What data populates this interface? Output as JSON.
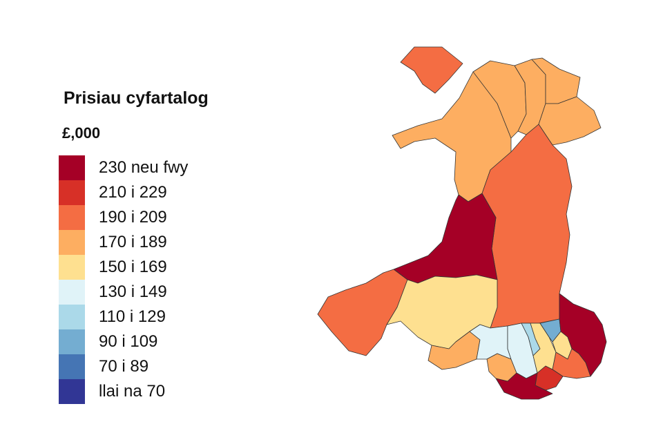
{
  "legend": {
    "title": "Prisiau cyfartalog",
    "unit": "£,000",
    "classes": [
      {
        "label": "230 neu fwy",
        "color": "#a50026"
      },
      {
        "label": "210 i 229",
        "color": "#d73027"
      },
      {
        "label": "190 i 209",
        "color": "#f46d43"
      },
      {
        "label": "170 i 189",
        "color": "#fdae61"
      },
      {
        "label": "150 i 169",
        "color": "#fee090"
      },
      {
        "label": "130 i 149",
        "color": "#e0f3f8"
      },
      {
        "label": "110 i 129",
        "color": "#abd9e9"
      },
      {
        "label": "90 i 109",
        "color": "#74add1"
      },
      {
        "label": "70 i 89",
        "color": "#4575b4"
      },
      {
        "label": "llai na 70",
        "color": "#313695"
      }
    ]
  },
  "map": {
    "regions": [
      {
        "name": "anglesey",
        "class": 2
      },
      {
        "name": "gwynedd",
        "class": 3
      },
      {
        "name": "conwy",
        "class": 3
      },
      {
        "name": "denbighshire",
        "class": 3
      },
      {
        "name": "flintshire",
        "class": 3
      },
      {
        "name": "wrexham",
        "class": 3
      },
      {
        "name": "powys",
        "class": 2
      },
      {
        "name": "ceredigion",
        "class": 0
      },
      {
        "name": "pembrokeshire",
        "class": 2
      },
      {
        "name": "carmarthenshire",
        "class": 4
      },
      {
        "name": "swansea",
        "class": 3
      },
      {
        "name": "neath-port-talbot",
        "class": 5
      },
      {
        "name": "bridgend",
        "class": 3
      },
      {
        "name": "rhondda-cynon-taf",
        "class": 5
      },
      {
        "name": "merthyr-tydfil",
        "class": 6
      },
      {
        "name": "caerphilly",
        "class": 4
      },
      {
        "name": "blaenau-gwent",
        "class": 7
      },
      {
        "name": "torfaen",
        "class": 4
      },
      {
        "name": "monmouthshire",
        "class": 0
      },
      {
        "name": "newport",
        "class": 2
      },
      {
        "name": "cardiff",
        "class": 1
      },
      {
        "name": "vale-of-glamorgan",
        "class": 0
      }
    ]
  }
}
